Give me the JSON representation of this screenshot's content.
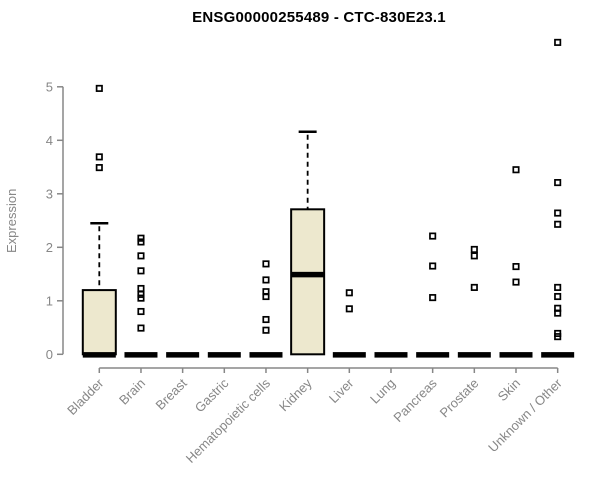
{
  "chart_data": {
    "type": "boxplot",
    "title": "ENSG00000255489 - CTC-830E23.1",
    "ylabel": "Expression",
    "xlabel": "",
    "yticks": [
      0,
      1,
      2,
      3,
      4,
      5
    ],
    "ylim": [
      0,
      5.9
    ],
    "grid": false,
    "legend": "none",
    "categories": [
      "Bladder",
      "Brain",
      "Breast",
      "Gastric",
      "Hematopoietic cells",
      "Kidney",
      "Liver",
      "Lung",
      "Pancreas",
      "Prostate",
      "Skin",
      "Unknown / Other"
    ],
    "series": [
      {
        "category": "Bladder",
        "q1": 0,
        "median": 0,
        "q3": 1.2,
        "whisker_low": 0,
        "whisker_high": 2.45,
        "outliers": [
          4.97,
          3.69,
          3.49
        ]
      },
      {
        "category": "Brain",
        "q1": 0,
        "median": 0,
        "q3": 0,
        "whisker_low": 0,
        "whisker_high": 0,
        "outliers": [
          2.17,
          2.1,
          1.84,
          1.56,
          1.23,
          1.12,
          1.05,
          0.8,
          0.49
        ]
      },
      {
        "category": "Breast",
        "q1": 0,
        "median": 0,
        "q3": 0,
        "whisker_low": 0,
        "whisker_high": 0,
        "outliers": []
      },
      {
        "category": "Gastric",
        "q1": 0,
        "median": 0,
        "q3": 0,
        "whisker_low": 0,
        "whisker_high": 0,
        "outliers": []
      },
      {
        "category": "Hematopoietic cells",
        "q1": 0,
        "median": 0,
        "q3": 0,
        "whisker_low": 0,
        "whisker_high": 0,
        "outliers": [
          1.69,
          1.39,
          1.17,
          1.08,
          0.65,
          0.45
        ]
      },
      {
        "category": "Kidney",
        "q1": 0,
        "median": 1.5,
        "q3": 2.71,
        "whisker_low": 0,
        "whisker_high": 4.16,
        "outliers": []
      },
      {
        "category": "Liver",
        "q1": 0,
        "median": 0,
        "q3": 0,
        "whisker_low": 0,
        "whisker_high": 0,
        "outliers": [
          1.15,
          0.85
        ]
      },
      {
        "category": "Lung",
        "q1": 0,
        "median": 0,
        "q3": 0,
        "whisker_low": 0,
        "whisker_high": 0,
        "outliers": []
      },
      {
        "category": "Pancreas",
        "q1": 0,
        "median": 0,
        "q3": 0,
        "whisker_low": 0,
        "whisker_high": 0,
        "outliers": [
          2.21,
          1.65,
          1.06
        ]
      },
      {
        "category": "Prostate",
        "q1": 0,
        "median": 0,
        "q3": 0,
        "whisker_low": 0,
        "whisker_high": 0,
        "outliers": [
          1.96,
          1.84,
          1.25
        ]
      },
      {
        "category": "Skin",
        "q1": 0,
        "median": 0,
        "q3": 0,
        "whisker_low": 0,
        "whisker_high": 0,
        "outliers": [
          3.45,
          1.64,
          1.35
        ]
      },
      {
        "category": "Unknown / Other",
        "q1": 0,
        "median": 0,
        "q3": 0,
        "whisker_low": 0,
        "whisker_high": 0,
        "outliers": [
          5.83,
          3.21,
          2.64,
          2.43,
          1.25,
          1.08,
          0.86,
          0.77,
          0.39,
          0.33
        ]
      }
    ],
    "colors": {
      "box_fill": "#EDE8CE",
      "box_border": "#000000",
      "median": "#000000",
      "whisker": "#000000",
      "outlier": "#000000",
      "axis": "#878787",
      "title": "#000000",
      "background": "#FFFFFF"
    }
  }
}
